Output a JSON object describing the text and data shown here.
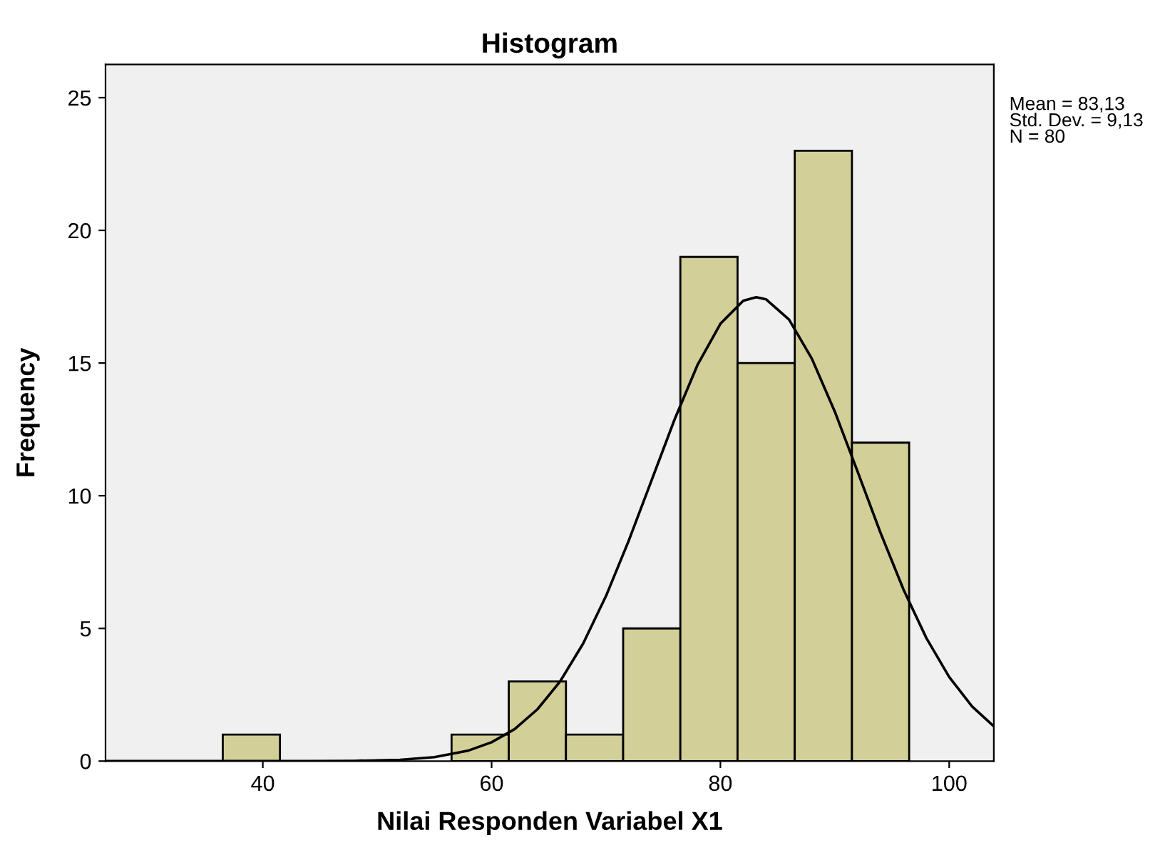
{
  "chart_data": {
    "type": "histogram",
    "title": "Histogram",
    "xlabel": "Nilai Responden Variabel X1",
    "ylabel": "Frequency",
    "bins": [
      36.5,
      41.5,
      46.5,
      51.5,
      56.5,
      61.5,
      66.5,
      71.5,
      76.5,
      81.5,
      86.5,
      91.5,
      96.5
    ],
    "series": [
      {
        "color": "#d3cf98",
        "values": [
          1,
          0,
          0,
          0,
          1,
          3,
          1,
          5,
          19,
          15,
          23,
          12
        ]
      },
      {
        "type": "line",
        "color": "#000000",
        "x": [
          26.3,
          40,
          44,
          48,
          52,
          55,
          58,
          60,
          62,
          64,
          66,
          68,
          70,
          72,
          74,
          76,
          78,
          80,
          82,
          83.13,
          84,
          86,
          88,
          90,
          92,
          94,
          96,
          98,
          100,
          102,
          103.9
        ],
        "values": [
          0.0,
          0.0,
          0.0,
          0.01,
          0.05,
          0.15,
          0.4,
          0.71,
          1.2,
          1.95,
          3.01,
          4.43,
          6.22,
          8.32,
          10.6,
          12.88,
          14.93,
          16.48,
          17.35,
          17.48,
          17.4,
          16.64,
          15.16,
          13.17,
          10.9,
          8.6,
          6.47,
          4.64,
          3.17,
          2.06,
          1.31
        ]
      }
    ],
    "annotations": [
      "Mean = 83,13",
      "Std. Dev. = 9,13",
      "N = 80"
    ],
    "xlim": [
      26.25,
      103.9
    ],
    "ylim": [
      0,
      26.25
    ],
    "xticks": [
      40,
      60,
      80,
      100
    ],
    "yticks": [
      0,
      5,
      10,
      15,
      20,
      25
    ],
    "grid": false,
    "legend": false
  }
}
